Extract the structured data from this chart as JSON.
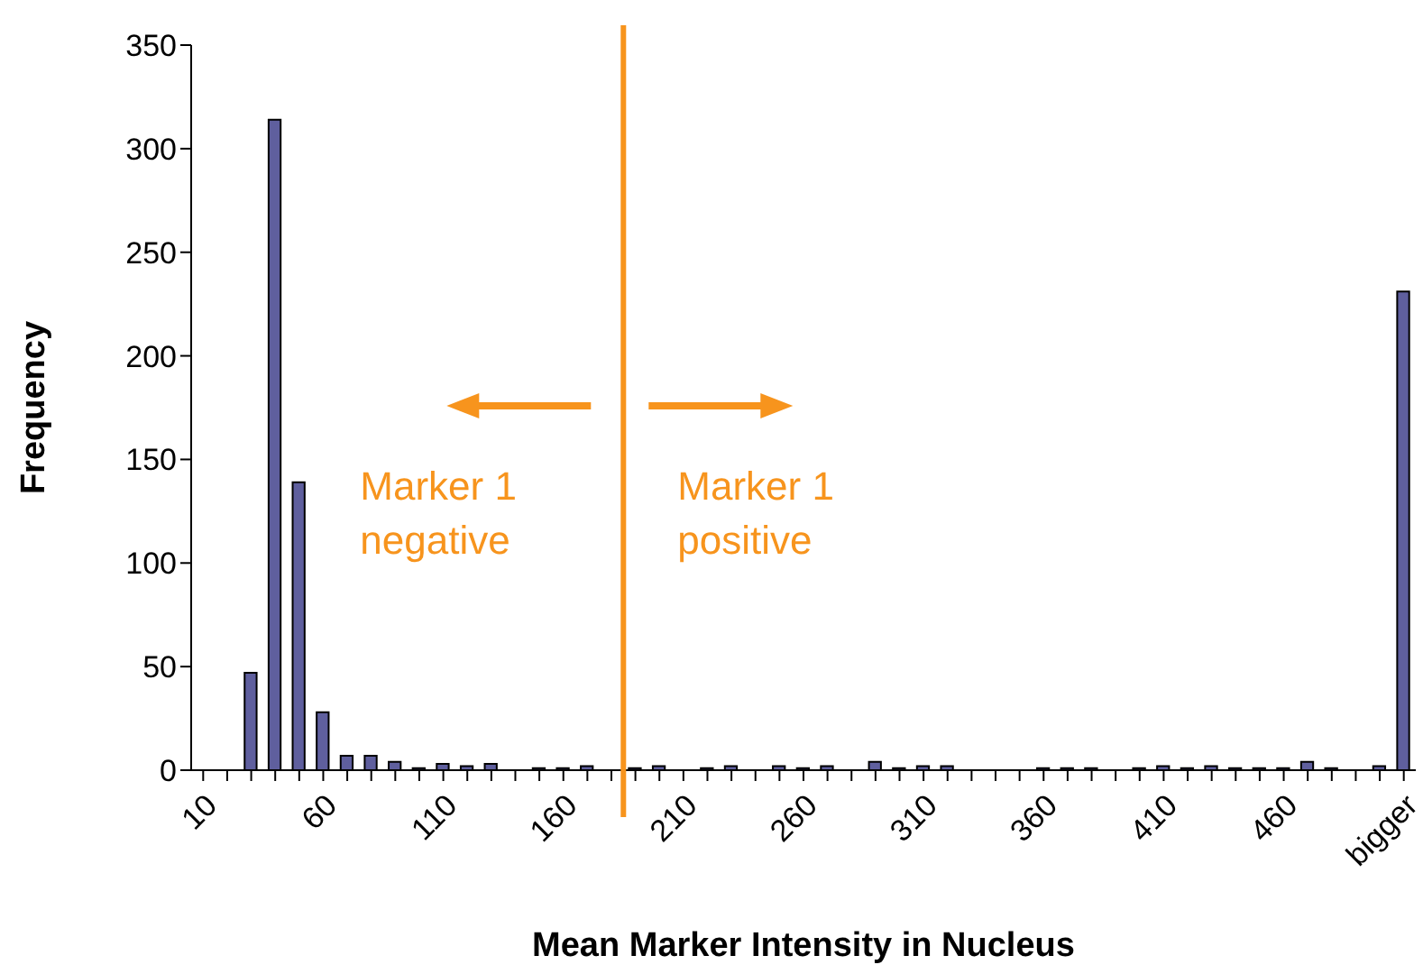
{
  "chart_data": {
    "type": "bar",
    "xlabel": "Mean Marker Intensity in Nucleus",
    "ylabel": "Frequency",
    "categories": [
      "10",
      null,
      null,
      null,
      null,
      "60",
      null,
      null,
      null,
      null,
      "110",
      null,
      null,
      null,
      null,
      "160",
      null,
      null,
      null,
      null,
      "210",
      null,
      null,
      null,
      null,
      "260",
      null,
      null,
      null,
      null,
      "310",
      null,
      null,
      null,
      null,
      "360",
      null,
      null,
      null,
      null,
      "410",
      null,
      null,
      null,
      null,
      "460",
      null,
      null,
      null,
      null,
      "bigger"
    ],
    "values": [
      0,
      0,
      47,
      314,
      139,
      28,
      7,
      7,
      4,
      1,
      3,
      2,
      3,
      0,
      1,
      1,
      2,
      0,
      1,
      2,
      0,
      1,
      2,
      0,
      2,
      1,
      2,
      0,
      4,
      1,
      2,
      2,
      0,
      0,
      0,
      1,
      1,
      1,
      0,
      1,
      2,
      1,
      2,
      1,
      1,
      1,
      4,
      1,
      0,
      2,
      231
    ],
    "color": "#5f5f9e",
    "ylim": [
      0,
      350
    ],
    "yticks": [
      0,
      50,
      100,
      150,
      200,
      250,
      300,
      350
    ],
    "annotations": [
      "Marker 1\nnegative",
      "Marker 1\npositive"
    ]
  }
}
